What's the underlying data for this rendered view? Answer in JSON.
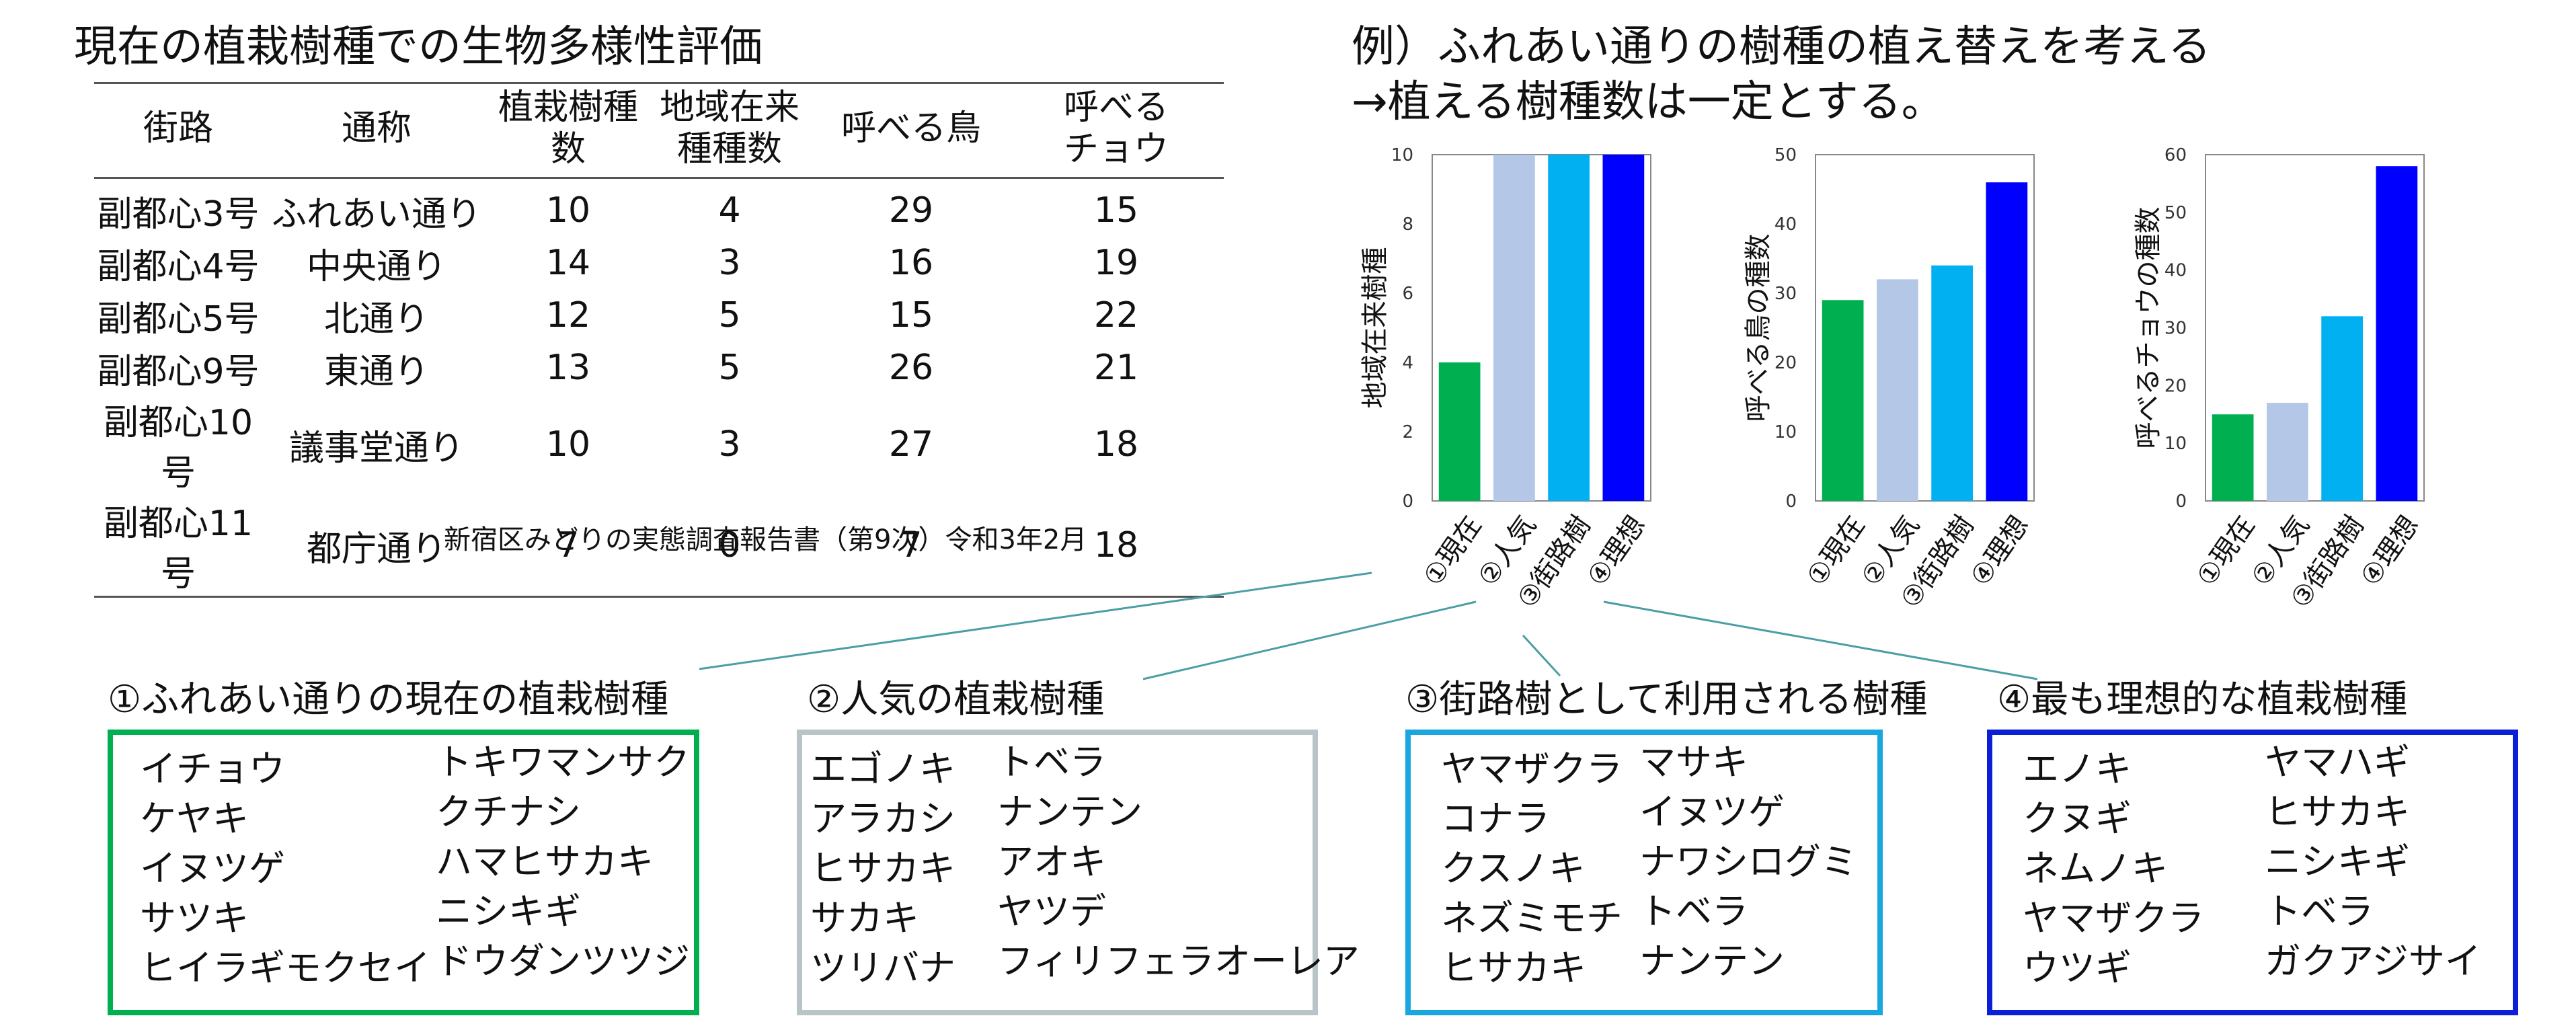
{
  "table": {
    "title": "現在の植栽樹種での生物多様性評価",
    "headers": [
      [
        "街路"
      ],
      [
        "通称"
      ],
      [
        "植栽樹種",
        "数"
      ],
      [
        "地域在来",
        "種種数"
      ],
      [
        "呼べる鳥"
      ],
      [
        "呼べる",
        "チョウ"
      ]
    ],
    "rows": [
      [
        "副都心3号",
        "ふれあい通り",
        "10",
        "4",
        "29",
        "15"
      ],
      [
        "副都心4号",
        "中央通り",
        "14",
        "3",
        "16",
        "19"
      ],
      [
        "副都心5号",
        "北通り",
        "12",
        "5",
        "15",
        "22"
      ],
      [
        "副都心9号",
        "東通り",
        "13",
        "5",
        "26",
        "21"
      ],
      [
        "副都心10号",
        "議事堂通り",
        "10",
        "3",
        "27",
        "18"
      ],
      [
        "副都心11号",
        "都庁通り",
        "7",
        "0",
        "7",
        "18"
      ]
    ],
    "source": "新宿区みどりの実態調査報告書（第9次）令和3年2月"
  },
  "example": {
    "title": "例）ふれあい通りの樹種の植え替えを考える",
    "subtitle": "→植える樹種数は一定とする。"
  },
  "chart_data": [
    {
      "type": "bar",
      "categories": [
        "①現在",
        "②人気",
        "③街路樹",
        "④理想"
      ],
      "values": [
        4,
        10,
        10,
        10
      ],
      "ylabel": "地域在来樹種",
      "ylim": [
        0,
        10
      ],
      "yticks": [
        0,
        2,
        4,
        6,
        8,
        10
      ],
      "colors": [
        "#00b050",
        "#b4c7e7",
        "#00b0f0",
        "#0000ff"
      ]
    },
    {
      "type": "bar",
      "categories": [
        "①現在",
        "②人気",
        "③街路樹",
        "④理想"
      ],
      "values": [
        29,
        32,
        34,
        46
      ],
      "ylabel": "呼べる鳥の種数",
      "ylim": [
        0,
        50
      ],
      "yticks": [
        0,
        10,
        20,
        30,
        40,
        50
      ],
      "colors": [
        "#00b050",
        "#b4c7e7",
        "#00b0f0",
        "#0000ff"
      ]
    },
    {
      "type": "bar",
      "categories": [
        "①現在",
        "②人気",
        "③街路樹",
        "④理想"
      ],
      "values": [
        15,
        17,
        32,
        58
      ],
      "ylabel": "呼べるチョウの種数",
      "ylim": [
        0,
        60
      ],
      "yticks": [
        0,
        10,
        20,
        30,
        40,
        50,
        60
      ],
      "colors": [
        "#00b050",
        "#b4c7e7",
        "#00b0f0",
        "#0000ff"
      ]
    }
  ],
  "boxes": [
    {
      "title": "①ふれあい通りの現在の植栽樹種",
      "color": "#00b050",
      "left": [
        "イチョウ",
        "ケヤキ",
        "イヌツゲ",
        "サツキ",
        "ヒイラギモクセイ"
      ],
      "right": [
        "トキワマンサク",
        "クチナシ",
        "ハマヒサカキ",
        "ニシキギ",
        "ドウダンツツジ"
      ]
    },
    {
      "title": "②人気の植栽樹種",
      "color": "#b8c4c8",
      "left": [
        "エゴノキ",
        "アラカシ",
        "ヒサカキ",
        "サカキ",
        "ツリバナ"
      ],
      "right": [
        "トベラ",
        "ナンテン",
        "アオキ",
        "ヤツデ",
        "フィリフェラオーレア"
      ]
    },
    {
      "title": "③街路樹として利用される樹種",
      "color": "#1aa7e0",
      "left": [
        "ヤマザクラ",
        "コナラ",
        "クスノキ",
        "ネズミモチ",
        "ヒサカキ"
      ],
      "right": [
        "マサキ",
        "イヌツゲ",
        "ナワシログミ",
        "トベラ",
        "ナンテン"
      ]
    },
    {
      "title": "④最も理想的な植栽樹種",
      "color": "#0a1fd6",
      "left": [
        "エノキ",
        "クヌギ",
        "ネムノキ",
        "ヤマザクラ",
        "ウツギ"
      ],
      "right": [
        "ヤマハギ",
        "ヒサカキ",
        "ニシキギ",
        "トベラ",
        "ガクアジサイ"
      ]
    }
  ],
  "connector_color": "#4a9ea4"
}
